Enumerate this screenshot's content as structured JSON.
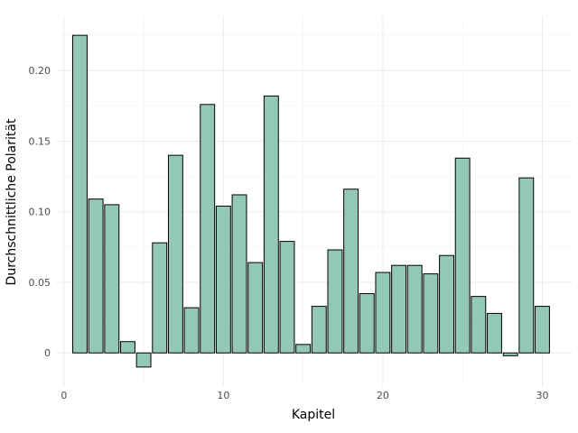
{
  "chart_data": {
    "type": "bar",
    "xlabel": "Kapitel",
    "ylabel": "Durchschnittliche Polarität",
    "bar_fill": "#93c8b9",
    "bar_stroke": "#000000",
    "x": [
      1,
      2,
      3,
      4,
      5,
      6,
      7,
      8,
      9,
      10,
      11,
      12,
      13,
      14,
      15,
      16,
      17,
      18,
      19,
      20,
      21,
      22,
      23,
      24,
      25,
      26,
      27,
      28,
      29,
      30
    ],
    "values": [
      0.225,
      0.109,
      0.105,
      0.008,
      -0.01,
      0.078,
      0.14,
      0.032,
      0.176,
      0.104,
      0.112,
      0.064,
      0.182,
      0.079,
      0.006,
      0.033,
      0.073,
      0.116,
      0.042,
      0.057,
      0.062,
      0.062,
      0.056,
      0.069,
      0.138,
      0.04,
      0.028,
      -0.002,
      0.124,
      0.033
    ],
    "xlim": [
      -0.5,
      31.9
    ],
    "ylim": [
      -0.0235,
      0.2385
    ],
    "xticks": [
      0,
      10,
      20,
      30
    ],
    "xtick_labels": [
      "0",
      "10",
      "20",
      "30"
    ],
    "yticks": [
      0,
      0.05,
      0.1,
      0.15,
      0.2
    ],
    "ytick_labels": [
      "0",
      "0.05",
      "0.10",
      "0.15",
      "0.20"
    ],
    "grid": true
  }
}
